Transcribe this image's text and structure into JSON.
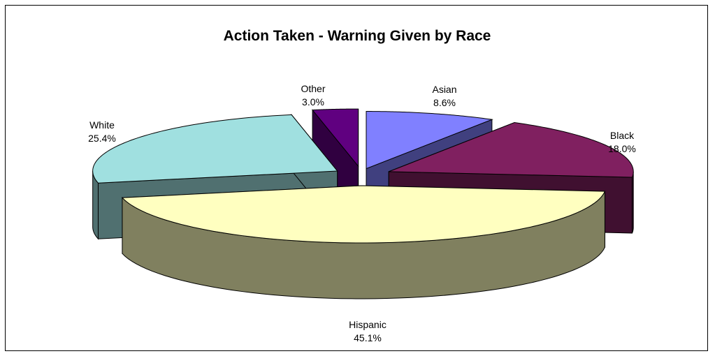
{
  "chart_data": {
    "type": "pie",
    "title": "Action Taken - Warning Given by Race",
    "slices": [
      {
        "label": "Asian",
        "value": 8.6,
        "display": "8.6%",
        "top_color": "#8080FF",
        "side_color": "#40407F"
      },
      {
        "label": "Black",
        "value": 18.0,
        "display": "18.0%",
        "top_color": "#802060",
        "side_color": "#401030"
      },
      {
        "label": "Hispanic",
        "value": 45.1,
        "display": "45.1%",
        "top_color": "#FFFFC0",
        "side_color": "#80805F"
      },
      {
        "label": "White",
        "value": 25.4,
        "display": "25.4%",
        "top_color": "#A0E0E0",
        "side_color": "#507070"
      },
      {
        "label": "Other",
        "value": 3.0,
        "display": "3.0%",
        "top_color": "#600080",
        "side_color": "#300040"
      }
    ],
    "legend": "none",
    "style": "3d-exploded"
  }
}
